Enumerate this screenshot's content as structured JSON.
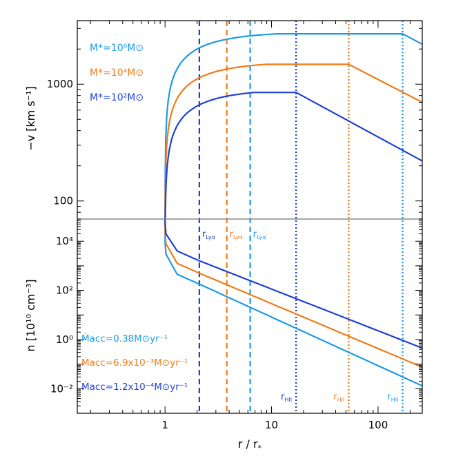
{
  "chart_data": {
    "type": "line",
    "colors": {
      "light": "#1a9ae6",
      "orange": "#f07a18",
      "dark": "#1e3fd6"
    },
    "x": {
      "label": "r / r",
      "label_sub": "*",
      "scale": "log",
      "lim": [
        0.15,
        260
      ],
      "tick_labels": [
        "1",
        "10",
        "100"
      ]
    },
    "panels": [
      {
        "id": "top",
        "ylabel": "−v [km s⁻¹]",
        "yscale": "log",
        "ylim": [
          70,
          3500
        ],
        "tick_labels": [
          "100",
          "1000"
        ],
        "legend_position": "top-left",
        "legend": [
          {
            "color": "light",
            "text": "M*=10⁶M⊙"
          },
          {
            "color": "orange",
            "text": "M*=10⁴M⊙"
          },
          {
            "color": "dark",
            "text": "M*=10²M⊙"
          }
        ],
        "series": [
          {
            "name": "M*=10^6 Msun",
            "color": "light",
            "peak_v": 2700,
            "r_break": 170,
            "v_end": 2200
          },
          {
            "name": "M*=10^4 Msun",
            "color": "orange",
            "peak_v": 1480,
            "r_break": 53,
            "v_end": 700
          },
          {
            "name": "M*=10^2 Msun",
            "color": "dark",
            "peak_v": 850,
            "r_break": 17,
            "v_end": 220
          }
        ]
      },
      {
        "id": "bottom",
        "ylabel": "n [10¹⁰ cm⁻³]",
        "yscale": "log",
        "ylim": [
          0.001,
          80000
        ],
        "tick_labels": [
          "10⁻²",
          "10⁰",
          "10²",
          "10⁴"
        ],
        "legend_position": "bottom-left",
        "legend": [
          {
            "color": "light",
            "text": "Ṁacc=0.38M⊙yr⁻¹"
          },
          {
            "color": "orange",
            "text": "Ṁacc=6.9x10⁻³M⊙yr⁻¹"
          },
          {
            "color": "dark",
            "text": "Ṁacc=1.2x10⁻⁴M⊙yr⁻¹"
          }
        ],
        "series": [
          {
            "name": "Macc=0.38",
            "color": "light",
            "n_start": 3000,
            "n_r2": 180,
            "n_end": 0.013
          },
          {
            "name": "Macc=6.9e-3",
            "color": "orange",
            "n_start": 8000,
            "n_r2": 500,
            "n_end": 0.075
          },
          {
            "name": "Macc=1.2e-4",
            "color": "dark",
            "n_start": 20000,
            "n_r2": 1600,
            "n_end": 0.45
          }
        ]
      }
    ],
    "vlines": [
      {
        "r": 2.1,
        "style": "dashed",
        "color": "dark",
        "label": "r",
        "label_sub": "Lyα"
      },
      {
        "r": 3.8,
        "style": "dashed",
        "color": "orange",
        "label": "r",
        "label_sub": "Lyα"
      },
      {
        "r": 6.3,
        "style": "dashed",
        "color": "light",
        "label": "r",
        "label_sub": "Lyα"
      },
      {
        "r": 17,
        "style": "dotted",
        "color": "dark",
        "label": "r",
        "label_sub": "HII"
      },
      {
        "r": 53,
        "style": "dotted",
        "color": "orange",
        "label": "r",
        "label_sub": "HII"
      },
      {
        "r": 170,
        "style": "dotted",
        "color": "light",
        "label": "r",
        "label_sub": "HII"
      }
    ]
  }
}
